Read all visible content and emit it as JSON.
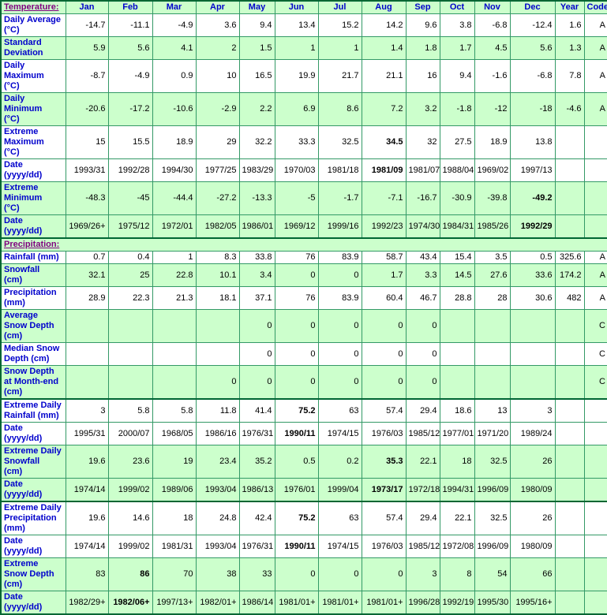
{
  "colors": {
    "cell_green": "#CCFFCC",
    "cell_white": "#FFFFFF",
    "grid_green": "#339966",
    "outer_border_green": "#006633",
    "label_blue": "#0000CC",
    "section_link_purple": "#800080"
  },
  "table": {
    "columns": [
      "Jan",
      "Feb",
      "Mar",
      "Apr",
      "May",
      "Jun",
      "Jul",
      "Aug",
      "Sep",
      "Oct",
      "Nov",
      "Dec",
      "Year",
      "Code"
    ],
    "sections": [
      {
        "title": "Temperature:",
        "rows": [
          {
            "label": "Daily Average\n(°C)",
            "shade": "white",
            "values": [
              "-14.7",
              "-11.1",
              "-4.9",
              "3.6",
              "9.4",
              "13.4",
              "15.2",
              "14.2",
              "9.6",
              "3.8",
              "-6.8",
              "-12.4",
              "1.6",
              "A"
            ],
            "bold": []
          },
          {
            "label": "Standard\nDeviation",
            "shade": "green",
            "values": [
              "5.9",
              "5.6",
              "4.1",
              "2",
              "1.5",
              "1",
              "1",
              "1.4",
              "1.8",
              "1.7",
              "4.5",
              "5.6",
              "1.3",
              "A"
            ],
            "bold": []
          },
          {
            "label": "Daily\nMaximum\n(°C)",
            "shade": "white",
            "values": [
              "-8.7",
              "-4.9",
              "0.9",
              "10",
              "16.5",
              "19.9",
              "21.7",
              "21.1",
              "16",
              "9.4",
              "-1.6",
              "-6.8",
              "7.8",
              "A"
            ],
            "bold": []
          },
          {
            "label": "Daily\nMinimum\n(°C)",
            "shade": "green",
            "values": [
              "-20.6",
              "-17.2",
              "-10.6",
              "-2.9",
              "2.2",
              "6.9",
              "8.6",
              "7.2",
              "3.2",
              "-1.8",
              "-12",
              "-18",
              "-4.6",
              "A"
            ],
            "bold": []
          },
          {
            "label": "Extreme\nMaximum\n(°C)",
            "shade": "white",
            "values": [
              "15",
              "15.5",
              "18.9",
              "29",
              "32.2",
              "33.3",
              "32.5",
              "34.5",
              "32",
              "27.5",
              "18.9",
              "13.8",
              "",
              ""
            ],
            "bold": [
              7
            ]
          },
          {
            "label": "Date\n(yyyy/dd)",
            "shade": "white",
            "values": [
              "1993/31",
              "1992/28",
              "1994/30",
              "1977/25",
              "1983/29",
              "1970/03",
              "1981/18",
              "1981/09",
              "1981/07",
              "1988/04",
              "1969/02",
              "1997/13",
              "",
              ""
            ],
            "bold": [
              7
            ]
          },
          {
            "label": "Extreme\nMinimum\n(°C)",
            "shade": "green",
            "values": [
              "-48.3",
              "-45",
              "-44.4",
              "-27.2",
              "-13.3",
              "-5",
              "-1.7",
              "-7.1",
              "-16.7",
              "-30.9",
              "-39.8",
              "-49.2",
              "",
              ""
            ],
            "bold": [
              11
            ]
          },
          {
            "label": "Date\n(yyyy/dd)",
            "shade": "green",
            "values": [
              "1969/26+",
              "1975/12",
              "1972/01",
              "1982/05",
              "1986/01",
              "1969/12",
              "1999/16",
              "1992/23",
              "1974/30",
              "1984/31",
              "1985/26",
              "1992/29",
              "",
              ""
            ],
            "bold": [
              11
            ]
          }
        ]
      },
      {
        "title": "Precipitation:",
        "rows": [
          {
            "label": "Rainfall (mm)",
            "shade": "white",
            "values": [
              "0.7",
              "0.4",
              "1",
              "8.3",
              "33.8",
              "76",
              "83.9",
              "58.7",
              "43.4",
              "15.4",
              "3.5",
              "0.5",
              "325.6",
              "A"
            ],
            "bold": []
          },
          {
            "label": "Snowfall\n(cm)",
            "shade": "green",
            "values": [
              "32.1",
              "25",
              "22.8",
              "10.1",
              "3.4",
              "0",
              "0",
              "1.7",
              "3.3",
              "14.5",
              "27.6",
              "33.6",
              "174.2",
              "A"
            ],
            "bold": []
          },
          {
            "label": "Precipitation\n(mm)",
            "shade": "white",
            "values": [
              "28.9",
              "22.3",
              "21.3",
              "18.1",
              "37.1",
              "76",
              "83.9",
              "60.4",
              "46.7",
              "28.8",
              "28",
              "30.6",
              "482",
              "A"
            ],
            "bold": []
          },
          {
            "label": "Average\nSnow Depth\n(cm)",
            "shade": "green",
            "values": [
              "",
              "",
              "",
              "",
              "0",
              "0",
              "0",
              "0",
              "0",
              "",
              "",
              "",
              "",
              "C"
            ],
            "bold": []
          },
          {
            "label": "Median Snow\nDepth (cm)",
            "shade": "white",
            "values": [
              "",
              "",
              "",
              "",
              "0",
              "0",
              "0",
              "0",
              "0",
              "",
              "",
              "",
              "",
              "C"
            ],
            "bold": []
          },
          {
            "label": "Snow Depth\nat Month-end\n(cm)",
            "shade": "green",
            "values": [
              "",
              "",
              "",
              "0",
              "0",
              "0",
              "0",
              "0",
              "0",
              "",
              "",
              "",
              "",
              "C"
            ],
            "bold": []
          },
          {
            "label": "Extreme Daily\nRainfall (mm)",
            "shade": "white",
            "thick_top": true,
            "values": [
              "3",
              "5.8",
              "5.8",
              "11.8",
              "41.4",
              "75.2",
              "63",
              "57.4",
              "29.4",
              "18.6",
              "13",
              "3",
              "",
              ""
            ],
            "bold": [
              5
            ]
          },
          {
            "label": "Date\n(yyyy/dd)",
            "shade": "white",
            "values": [
              "1995/31",
              "2000/07",
              "1968/05",
              "1986/16",
              "1976/31",
              "1990/11",
              "1974/15",
              "1976/03",
              "1985/12",
              "1977/01",
              "1971/20",
              "1989/24",
              "",
              ""
            ],
            "bold": [
              5
            ]
          },
          {
            "label": "Extreme Daily\nSnowfall\n(cm)",
            "shade": "green",
            "values": [
              "19.6",
              "23.6",
              "19",
              "23.4",
              "35.2",
              "0.5",
              "0.2",
              "35.3",
              "22.1",
              "18",
              "32.5",
              "26",
              "",
              ""
            ],
            "bold": [
              7
            ]
          },
          {
            "label": "Date\n(yyyy/dd)",
            "shade": "green",
            "values": [
              "1974/14",
              "1999/02",
              "1989/06",
              "1993/04",
              "1986/13",
              "1976/01",
              "1999/04",
              "1973/17",
              "1972/18",
              "1994/31",
              "1996/09",
              "1980/09",
              "",
              ""
            ],
            "bold": [
              7
            ]
          },
          {
            "label": "Extreme Daily\nPrecipitation\n(mm)",
            "shade": "white",
            "thick_top": true,
            "values": [
              "19.6",
              "14.6",
              "18",
              "24.8",
              "42.4",
              "75.2",
              "63",
              "57.4",
              "29.4",
              "22.1",
              "32.5",
              "26",
              "",
              ""
            ],
            "bold": [
              5
            ]
          },
          {
            "label": "Date\n(yyyy/dd)",
            "shade": "white",
            "values": [
              "1974/14",
              "1999/02",
              "1981/31",
              "1993/04",
              "1976/31",
              "1990/11",
              "1974/15",
              "1976/03",
              "1985/12",
              "1972/08",
              "1996/09",
              "1980/09",
              "",
              ""
            ],
            "bold": [
              5
            ]
          },
          {
            "label": "Extreme\nSnow Depth\n(cm)",
            "shade": "green",
            "values": [
              "83",
              "86",
              "70",
              "38",
              "33",
              "0",
              "0",
              "0",
              "3",
              "8",
              "54",
              "66",
              "",
              ""
            ],
            "bold": [
              1
            ]
          },
          {
            "label": "Date\n(yyyy/dd)",
            "shade": "green",
            "values": [
              "1982/29+",
              "1982/06+",
              "1997/13+",
              "1982/01+",
              "1986/14",
              "1981/01+",
              "1981/01+",
              "1981/01+",
              "1996/28",
              "1992/19",
              "1995/30",
              "1995/16+",
              "",
              ""
            ],
            "bold": [
              1
            ]
          }
        ]
      }
    ]
  }
}
